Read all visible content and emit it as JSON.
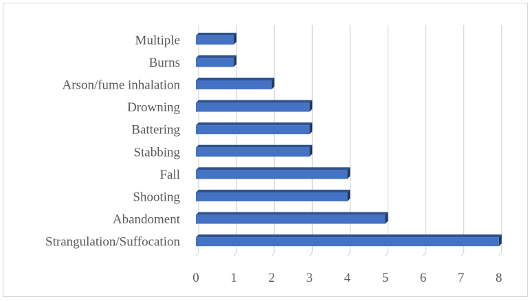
{
  "chart_data": {
    "type": "bar",
    "orientation": "horizontal",
    "style": "3d",
    "categories": [
      "Multiple",
      "Burns",
      "Arson/fume inhalation",
      "Drowning",
      "Battering",
      "Stabbing",
      "Fall",
      "Shooting",
      "Abandoment",
      "Strangulation/Suffocation"
    ],
    "values": [
      1,
      1,
      2,
      3,
      3,
      3,
      4,
      4,
      5,
      8
    ],
    "xlim": [
      0,
      8
    ],
    "xticks": [
      "0",
      "1",
      "2",
      "3",
      "4",
      "5",
      "6",
      "7",
      "8"
    ],
    "grid": true,
    "legend": "none",
    "colors": {
      "bar_front": "#4472c4",
      "bar_top": "#2f528f",
      "bar_side": "#203864",
      "grid": "#d9d9d9",
      "text": "#595959"
    }
  }
}
